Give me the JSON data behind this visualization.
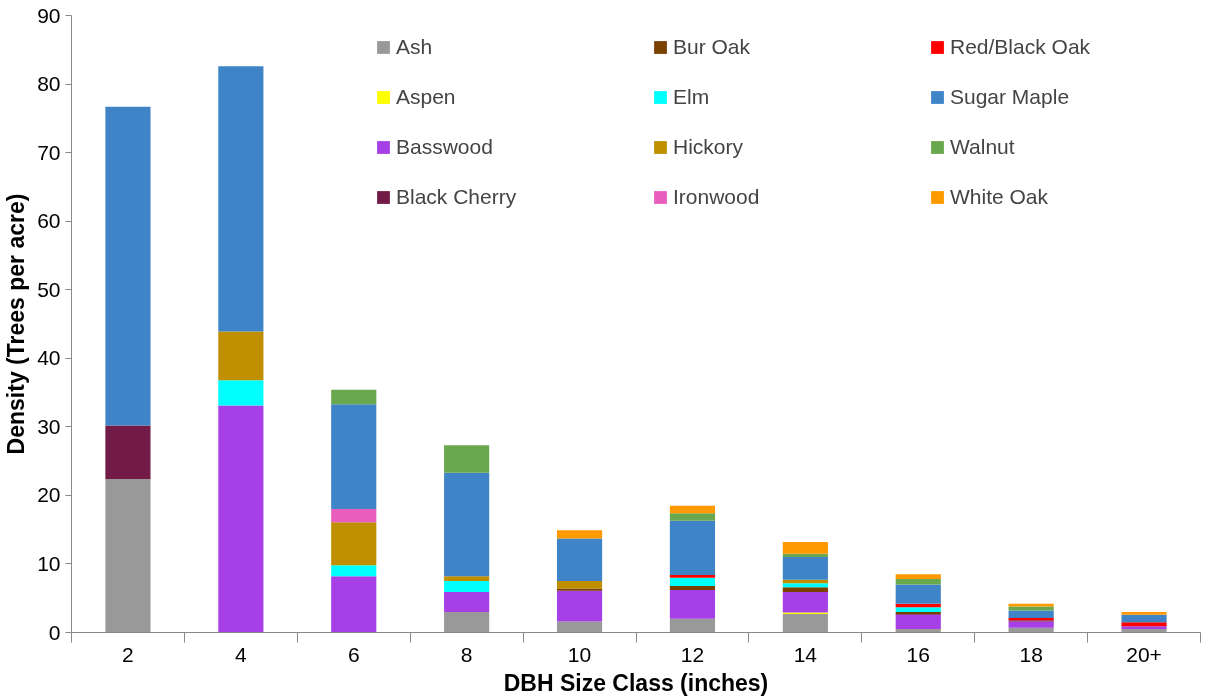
{
  "chart_data": {
    "type": "bar",
    "stacked": true,
    "xlabel": "DBH Size Class (inches)",
    "ylabel": "Density (Trees per acre)",
    "categories": [
      "2",
      "4",
      "6",
      "8",
      "10",
      "12",
      "14",
      "16",
      "18",
      "20+"
    ],
    "ylim": [
      0,
      90
    ],
    "yticks": [
      0,
      10,
      20,
      30,
      40,
      50,
      60,
      70,
      80,
      90
    ],
    "grid": false,
    "legend": "top right",
    "series": [
      {
        "name": "Ash",
        "color": "#999999",
        "values": [
          22.4,
          null,
          null,
          3.0,
          1.6,
          2.0,
          2.7,
          0.5,
          0.7,
          0.5
        ]
      },
      {
        "name": "Aspen",
        "color": "#ffff00",
        "values": [
          null,
          null,
          null,
          null,
          null,
          null,
          0.2,
          null,
          null,
          null
        ]
      },
      {
        "name": "Basswood",
        "color": "#a63fe6",
        "values": [
          null,
          33.1,
          8.2,
          2.9,
          4.5,
          4.2,
          3.0,
          2.1,
          0.9,
          0.4
        ]
      },
      {
        "name": "Black Cherry",
        "color": "#731b47",
        "values": [
          7.8,
          null,
          null,
          null,
          null,
          null,
          null,
          0.1,
          0.2,
          null
        ]
      },
      {
        "name": "Bur Oak",
        "color": "#7a4000",
        "values": [
          null,
          null,
          null,
          null,
          0.3,
          0.6,
          0.7,
          0.3,
          null,
          null
        ]
      },
      {
        "name": "Elm",
        "color": "#00ffff",
        "values": [
          null,
          3.7,
          1.6,
          1.6,
          null,
          1.2,
          0.6,
          0.7,
          null,
          null
        ]
      },
      {
        "name": "Hickory",
        "color": "#bf8f00",
        "values": [
          null,
          7.1,
          6.3,
          0.7,
          1.1,
          null,
          0.5,
          null,
          null,
          null
        ]
      },
      {
        "name": "Ironwood",
        "color": "#e85ebe",
        "values": [
          null,
          null,
          1.9,
          null,
          null,
          null,
          null,
          null,
          null,
          null
        ]
      },
      {
        "name": "Red/Black Oak",
        "color": "#ff0000",
        "values": [
          null,
          null,
          null,
          null,
          null,
          0.4,
          null,
          0.5,
          0.3,
          0.6
        ]
      },
      {
        "name": "Sugar Maple",
        "color": "#3e84c6",
        "values": [
          46.5,
          38.7,
          15.3,
          15.1,
          6.2,
          7.9,
          3.3,
          2.8,
          1.1,
          1.1
        ]
      },
      {
        "name": "Walnut",
        "color": "#6aa84f",
        "values": [
          null,
          null,
          2.1,
          4.0,
          null,
          1.1,
          0.5,
          0.8,
          0.6,
          null
        ]
      },
      {
        "name": "White Oak",
        "color": "#ff9900",
        "values": [
          null,
          null,
          null,
          null,
          1.2,
          1.1,
          1.7,
          0.7,
          0.4,
          0.4
        ]
      }
    ]
  }
}
